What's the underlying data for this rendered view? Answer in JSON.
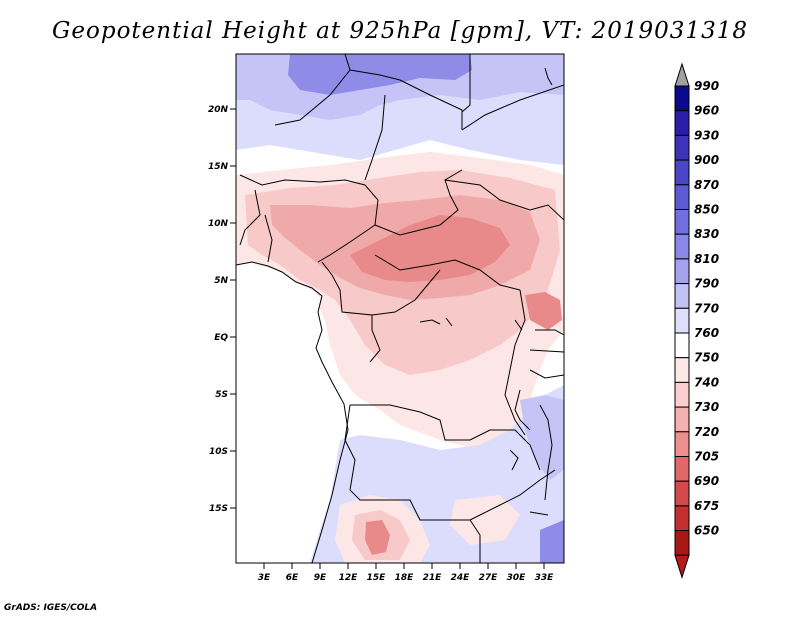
{
  "title": "Geopotential Height at 925hPa [gpm], VT: 2019031318",
  "credit": "GrADS: IGES/COLA",
  "map": {
    "lat_labels": [
      "20N",
      "15N",
      "10N",
      "5N",
      "EQ",
      "5S",
      "10S",
      "15S"
    ],
    "lon_labels": [
      "3E",
      "6E",
      "9E",
      "12E",
      "15E",
      "18E",
      "21E",
      "24E",
      "27E",
      "30E",
      "33E"
    ]
  },
  "colorbar": {
    "levels": [
      "990",
      "960",
      "930",
      "900",
      "870",
      "850",
      "830",
      "810",
      "790",
      "770",
      "760",
      "750",
      "740",
      "730",
      "720",
      "705",
      "690",
      "675",
      "650"
    ],
    "colors": [
      "#0a0a8c",
      "#2a1fa6",
      "#3b33b8",
      "#4b46c8",
      "#5d5bd4",
      "#7170de",
      "#8987e8",
      "#a4a2ef",
      "#c3c2f5",
      "#dfdefa",
      "#ffffff",
      "#fde8e8",
      "#fbcfcf",
      "#f5b0b0",
      "#ee8f8f",
      "#e06868",
      "#d24a4a",
      "#c23030",
      "#a81818"
    ],
    "top_arrow_color": "#a0a0a0",
    "bottom_arrow_color": "#b81818"
  },
  "colors": {
    "ocean": "#ffffff",
    "blue_light": "#dcdcfc",
    "blue_mid": "#c6c4f6",
    "blue_deep": "#8f8ce8",
    "pink_light": "#fde6e6",
    "pink_mid": "#f8c9c9",
    "pink_deep": "#f0a9a9",
    "red": "#e88a8a",
    "border": "#000000"
  }
}
